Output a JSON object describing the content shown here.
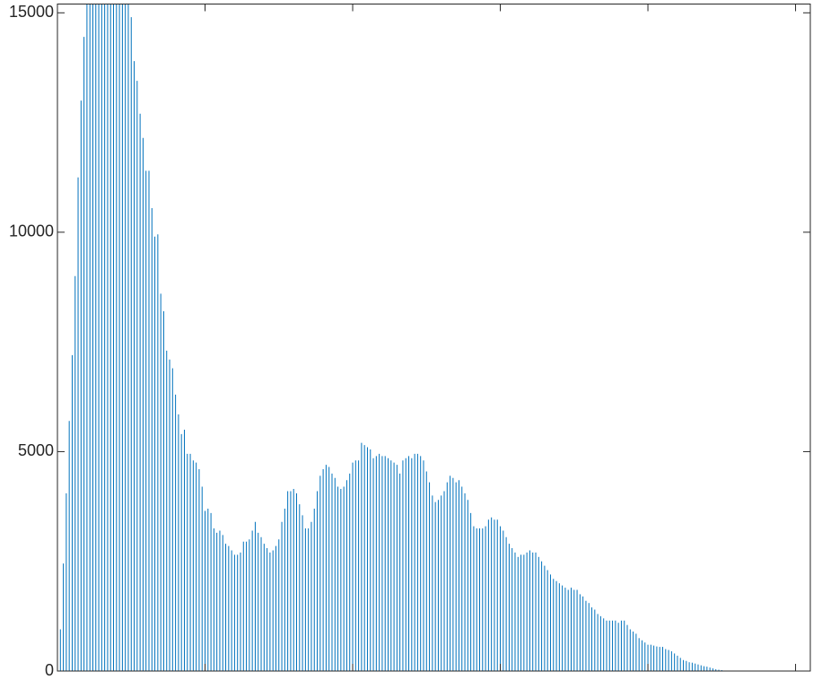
{
  "chart_data": {
    "type": "stem",
    "color": "#0072bd",
    "xlim": [
      0,
      255
    ],
    "xticks": [
      50,
      100,
      150,
      200,
      250
    ],
    "ylim": [
      0,
      15200
    ],
    "yticks": [
      0,
      5000,
      10000,
      15000
    ],
    "box": true,
    "x": [
      0,
      1,
      2,
      3,
      4,
      5,
      6,
      7,
      8,
      9,
      10,
      11,
      12,
      13,
      14,
      15,
      16,
      17,
      18,
      19,
      20,
      21,
      22,
      23,
      24,
      25,
      26,
      27,
      28,
      29,
      30,
      31,
      32,
      33,
      34,
      35,
      36,
      37,
      38,
      39,
      40,
      41,
      42,
      43,
      44,
      45,
      46,
      47,
      48,
      49,
      50,
      51,
      52,
      53,
      54,
      55,
      56,
      57,
      58,
      59,
      60,
      61,
      62,
      63,
      64,
      65,
      66,
      67,
      68,
      69,
      70,
      71,
      72,
      73,
      74,
      75,
      76,
      77,
      78,
      79,
      80,
      81,
      82,
      83,
      84,
      85,
      86,
      87,
      88,
      89,
      90,
      91,
      92,
      93,
      94,
      95,
      96,
      97,
      98,
      99,
      100,
      101,
      102,
      103,
      104,
      105,
      106,
      107,
      108,
      109,
      110,
      111,
      112,
      113,
      114,
      115,
      116,
      117,
      118,
      119,
      120,
      121,
      122,
      123,
      124,
      125,
      126,
      127,
      128,
      129,
      130,
      131,
      132,
      133,
      134,
      135,
      136,
      137,
      138,
      139,
      140,
      141,
      142,
      143,
      144,
      145,
      146,
      147,
      148,
      149,
      150,
      151,
      152,
      153,
      154,
      155,
      156,
      157,
      158,
      159,
      160,
      161,
      162,
      163,
      164,
      165,
      166,
      167,
      168,
      169,
      170,
      171,
      172,
      173,
      174,
      175,
      176,
      177,
      178,
      179,
      180,
      181,
      182,
      183,
      184,
      185,
      186,
      187,
      188,
      189,
      190,
      191,
      192,
      193,
      194,
      195,
      196,
      197,
      198,
      199,
      200,
      201,
      202,
      203,
      204,
      205,
      206,
      207,
      208,
      209,
      210,
      211,
      212,
      213,
      214,
      215,
      216,
      217,
      218,
      219,
      220,
      221,
      222,
      223,
      224,
      225,
      226,
      227,
      228,
      229,
      230,
      231,
      232,
      233,
      234,
      235,
      236,
      237,
      238,
      239,
      240,
      241,
      242,
      243,
      244,
      245,
      246,
      247,
      248,
      249,
      250,
      251,
      252,
      253,
      254,
      255
    ],
    "values": [
      0,
      950,
      2450,
      4050,
      5700,
      7200,
      9000,
      11250,
      13000,
      14450,
      15500,
      16000,
      16500,
      16900,
      17200,
      17400,
      17500,
      17400,
      17200,
      17000,
      16700,
      16300,
      16000,
      15700,
      15400,
      14900,
      13900,
      13450,
      12700,
      12150,
      11400,
      11400,
      10550,
      9900,
      9950,
      8600,
      8200,
      7300,
      7100,
      6900,
      6300,
      5850,
      5400,
      5500,
      4950,
      4950,
      4800,
      4750,
      4600,
      4200,
      3650,
      3700,
      3600,
      3250,
      3150,
      3200,
      3100,
      2900,
      2850,
      2750,
      2650,
      2650,
      2700,
      2950,
      2950,
      3000,
      3200,
      3400,
      3150,
      3050,
      2900,
      2800,
      2700,
      2750,
      2850,
      3000,
      3400,
      3700,
      4100,
      4100,
      4150,
      4050,
      3800,
      3550,
      3250,
      3250,
      3400,
      3700,
      4100,
      4450,
      4600,
      4700,
      4650,
      4500,
      4400,
      4200,
      4150,
      4200,
      4350,
      4500,
      4750,
      4800,
      4800,
      5200,
      5150,
      5100,
      5050,
      4850,
      4900,
      4950,
      4900,
      4900,
      4850,
      4800,
      4750,
      4700,
      4500,
      4800,
      4850,
      4900,
      4850,
      4950,
      4950,
      4900,
      4800,
      4550,
      4300,
      4000,
      3850,
      3900,
      4000,
      4100,
      4300,
      4450,
      4400,
      4300,
      4350,
      4200,
      4050,
      3900,
      3600,
      3300,
      3250,
      3250,
      3250,
      3300,
      3450,
      3500,
      3450,
      3450,
      3300,
      3200,
      3050,
      2900,
      2800,
      2700,
      2600,
      2650,
      2650,
      2700,
      2750,
      2700,
      2700,
      2600,
      2500,
      2400,
      2300,
      2200,
      2100,
      2050,
      2000,
      1950,
      1900,
      1850,
      1900,
      1850,
      1850,
      1750,
      1700,
      1600,
      1550,
      1450,
      1400,
      1300,
      1250,
      1200,
      1150,
      1150,
      1150,
      1150,
      1100,
      1150,
      1150,
      1050,
      950,
      900,
      850,
      750,
      700,
      650,
      600,
      600,
      580,
      560,
      550,
      550,
      500,
      480,
      450,
      400,
      350,
      300,
      250,
      230,
      200,
      190,
      170,
      150,
      130,
      110,
      100,
      80,
      60,
      40,
      30,
      20,
      10,
      0,
      0,
      0,
      0,
      0,
      0,
      0,
      0,
      0,
      0,
      0,
      0,
      0,
      0,
      0,
      0,
      0,
      0,
      0,
      0,
      0,
      0,
      0,
      0,
      0,
      0,
      0,
      0,
      0
    ]
  }
}
